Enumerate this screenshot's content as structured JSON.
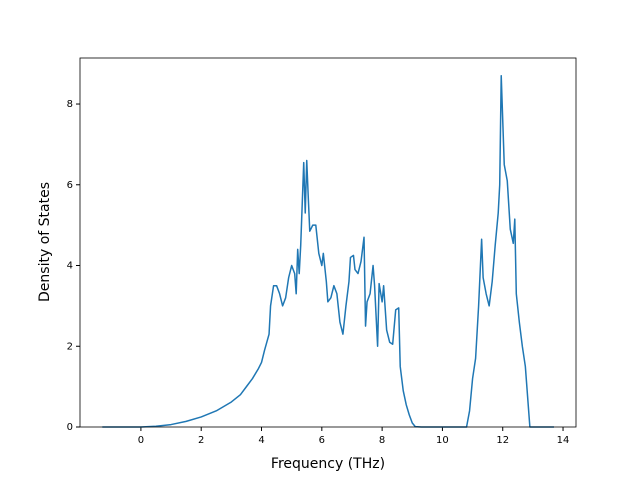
{
  "chart_data": {
    "type": "line",
    "xlabel": "Frequency (THz)",
    "ylabel": "Density of States",
    "xlim": [
      -2.02,
      14.43
    ],
    "ylim": [
      0,
      9.14
    ],
    "xticks": [
      0,
      2,
      4,
      6,
      8,
      10,
      12,
      14
    ],
    "yticks": [
      0,
      2,
      4,
      6,
      8
    ],
    "series": [
      {
        "color": "#1f77b4",
        "x": [
          -1.28,
          0,
          0.5,
          1,
          1.5,
          2,
          2.5,
          3,
          3.3,
          3.5,
          3.7,
          3.9,
          4.0,
          4.1,
          4.25,
          4.3,
          4.4,
          4.5,
          4.6,
          4.7,
          4.8,
          4.9,
          5.0,
          5.1,
          5.15,
          5.2,
          5.25,
          5.3,
          5.4,
          5.45,
          5.5,
          5.55,
          5.6,
          5.7,
          5.8,
          5.9,
          6.0,
          6.05,
          6.15,
          6.2,
          6.3,
          6.4,
          6.5,
          6.6,
          6.7,
          6.8,
          6.9,
          6.95,
          7.05,
          7.1,
          7.2,
          7.3,
          7.4,
          7.45,
          7.5,
          7.6,
          7.7,
          7.75,
          7.85,
          7.9,
          8.0,
          8.05,
          8.15,
          8.25,
          8.35,
          8.45,
          8.55,
          8.6,
          8.7,
          8.8,
          8.9,
          9.0,
          9.1,
          9.3,
          10.8,
          10.9,
          11.0,
          11.1,
          11.2,
          11.3,
          11.35,
          11.45,
          11.55,
          11.65,
          11.75,
          11.85,
          11.9,
          11.95,
          12.05,
          12.15,
          12.25,
          12.35,
          12.4,
          12.45,
          12.55,
          12.65,
          12.75,
          12.85,
          12.9,
          13.7
        ],
        "values": [
          0,
          0,
          0.02,
          0.06,
          0.14,
          0.25,
          0.4,
          0.62,
          0.8,
          1.0,
          1.2,
          1.45,
          1.6,
          1.9,
          2.3,
          3.0,
          3.5,
          3.5,
          3.3,
          3.0,
          3.2,
          3.7,
          4.0,
          3.8,
          3.3,
          4.4,
          3.8,
          4.5,
          6.55,
          5.3,
          6.6,
          5.7,
          4.85,
          5.0,
          5.0,
          4.3,
          4.0,
          4.3,
          3.6,
          3.1,
          3.2,
          3.5,
          3.3,
          2.6,
          2.3,
          3.0,
          3.6,
          4.2,
          4.25,
          3.9,
          3.8,
          4.1,
          4.7,
          2.5,
          3.1,
          3.3,
          4.0,
          3.5,
          2.0,
          3.55,
          3.1,
          3.5,
          2.4,
          2.1,
          2.05,
          2.9,
          2.95,
          1.5,
          0.9,
          0.55,
          0.3,
          0.1,
          0.01,
          0,
          0,
          0.4,
          1.2,
          1.7,
          3.0,
          4.65,
          3.7,
          3.3,
          3.0,
          3.6,
          4.5,
          5.3,
          6.0,
          8.7,
          6.5,
          6.1,
          4.9,
          4.55,
          5.15,
          3.3,
          2.6,
          2.0,
          1.5,
          0.5,
          0.0,
          0
        ]
      }
    ]
  }
}
